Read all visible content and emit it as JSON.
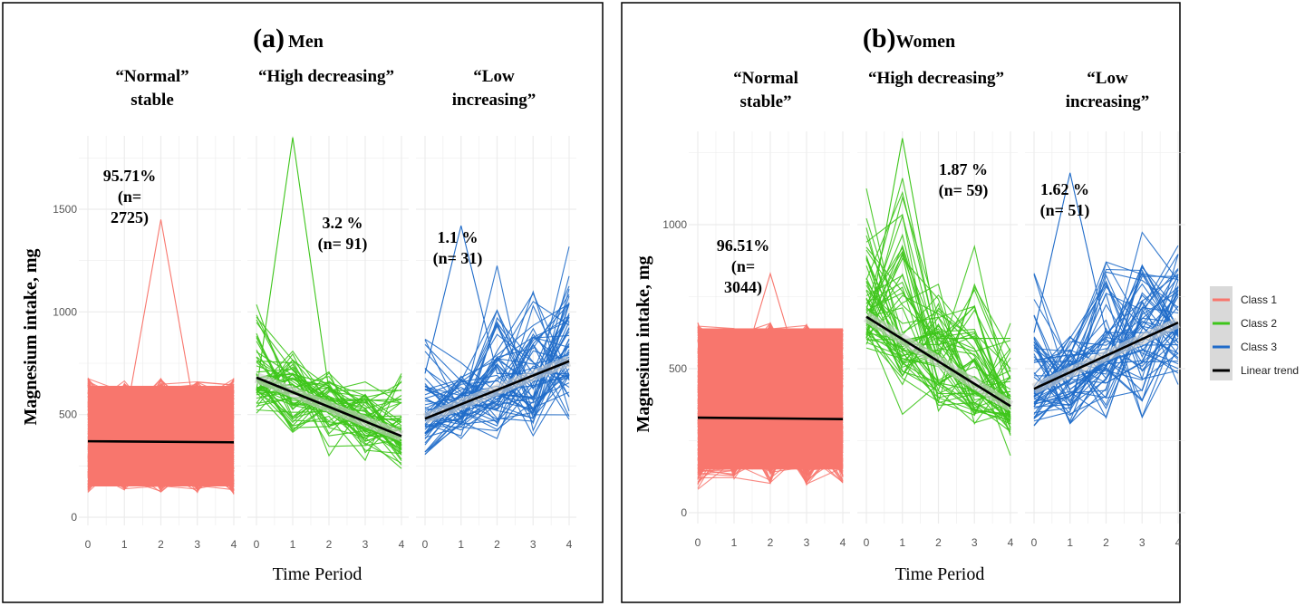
{
  "chart_data": [
    {
      "type": "line",
      "panel_label": "(a)",
      "title": "Men",
      "xlabel": "Time Period",
      "ylabel": "Magnesium intake, mg",
      "x_ticks": [
        "0",
        "1",
        "2",
        "3",
        "4"
      ],
      "y_ticks": [
        "0",
        "500",
        "1000",
        "1500"
      ],
      "ylim": [
        0,
        1830
      ],
      "grid": true,
      "facets": [
        {
          "label_lines": [
            "“Normal”",
            "stable"
          ],
          "class": "Class 1",
          "annotation": [
            "95.71%",
            "(n=",
            "2725)"
          ],
          "trend": [
            370,
            365
          ],
          "envelope_min": [
            100,
            110,
            100,
            100,
            90
          ],
          "envelope_max": [
            720,
            700,
            720,
            700,
            720
          ],
          "peak_outlier": 1450
        },
        {
          "label_lines": [
            "“High decreasing”"
          ],
          "class": "Class 2",
          "annotation": [
            "3.2 %",
            "(n= 91)"
          ],
          "trend": [
            680,
            395
          ],
          "envelope_min": [
            450,
            350,
            200,
            200,
            200
          ],
          "envelope_max": [
            1200,
            900,
            800,
            700,
            950
          ],
          "peak_outlier": 1850
        },
        {
          "label_lines": [
            "“Low",
            "increasing”"
          ],
          "class": "Class 3",
          "annotation": [
            "1.1 %",
            "(n= 31)"
          ],
          "trend": [
            480,
            760
          ],
          "envelope_min": [
            200,
            300,
            300,
            250,
            320
          ],
          "envelope_max": [
            1100,
            800,
            1400,
            1350,
            1420
          ],
          "peak_outlier": 1420
        }
      ]
    },
    {
      "type": "line",
      "panel_label": "(b)",
      "title": "Women",
      "xlabel": "Time Period",
      "ylabel": "Magnesium intake, mg",
      "x_ticks": [
        "0",
        "1",
        "2",
        "3",
        "4"
      ],
      "y_ticks": [
        "0",
        "500",
        "1000"
      ],
      "ylim": [
        0,
        1310
      ],
      "grid": true,
      "facets": [
        {
          "label_lines": [
            "“Normal",
            "stable”"
          ],
          "class": "Class 1",
          "annotation": [
            "96.51%",
            "(n=",
            "3044)"
          ],
          "trend": [
            330,
            325
          ],
          "envelope_min": [
            60,
            80,
            80,
            70,
            80
          ],
          "envelope_max": [
            700,
            680,
            700,
            700,
            680
          ],
          "peak_outlier": 830
        },
        {
          "label_lines": [
            "“High decreasing”"
          ],
          "class": "Class 2",
          "annotation": [
            "1.87 %",
            "(n= 59)"
          ],
          "trend": [
            680,
            370
          ],
          "envelope_min": [
            500,
            300,
            230,
            250,
            170
          ],
          "envelope_max": [
            1300,
            1300,
            950,
            1060,
            750
          ],
          "peak_outlier": 1300
        },
        {
          "label_lines": [
            "“Low",
            "increasing”"
          ],
          "class": "Class 3",
          "annotation": [
            "1.62 %",
            "(n= 51)"
          ],
          "trend": [
            430,
            660
          ],
          "envelope_min": [
            230,
            200,
            230,
            240,
            400
          ],
          "envelope_max": [
            930,
            700,
            1180,
            1160,
            1130
          ],
          "peak_outlier": 1180
        }
      ]
    }
  ],
  "legend": {
    "placement": "right",
    "items": [
      {
        "label": "Class 1",
        "color": "#F8766D"
      },
      {
        "label": "Class 2",
        "color": "#3DC51A"
      },
      {
        "label": "Class 3",
        "color": "#1F6BC9"
      },
      {
        "label": "Linear trend",
        "color": "#000000"
      }
    ]
  },
  "colors": {
    "Class 1": "#F8766D",
    "Class 2": "#3DC51A",
    "Class 3": "#1F6BC9",
    "trend": "#000000",
    "legend_bg": "#D9D9D9"
  }
}
